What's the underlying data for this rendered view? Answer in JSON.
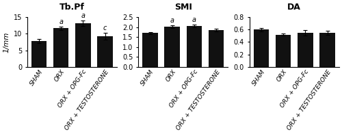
{
  "chart_data": [
    {
      "type": "bar",
      "title": "Tb.Pf",
      "ylabel": "1/mm",
      "categories": [
        "SHAM",
        "ORX",
        "ORX + OPG-Fc",
        "ORX + TESTOSTERONE"
      ],
      "values": [
        7.8,
        11.7,
        13.2,
        9.2
      ],
      "errors": [
        0.7,
        0.5,
        0.8,
        1.0
      ],
      "annotations": [
        null,
        "a",
        "a",
        "c"
      ],
      "color": "#111111",
      "ylim": [
        0,
        15
      ],
      "yticks": [
        0,
        5,
        10,
        15
      ],
      "grid": false
    },
    {
      "type": "bar",
      "title": "SMI",
      "categories": [
        "SHAM",
        "ORX",
        "ORX + OPG-Fc",
        "ORX + TESTOSTERONE"
      ],
      "values": [
        1.7,
        2.03,
        2.05,
        1.85
      ],
      "errors": [
        0.04,
        0.07,
        0.07,
        0.08
      ],
      "annotations": [
        null,
        "a",
        "a",
        null
      ],
      "color": "#111111",
      "ylim": [
        0.0,
        2.5
      ],
      "yticks": [
        {
          "value": 0.0,
          "label": "0.0"
        },
        0.5,
        {
          "value": 1.0,
          "label": "1.0"
        },
        1.5,
        {
          "value": 2.0,
          "label": "2.0"
        },
        2.5
      ],
      "grid": false
    },
    {
      "type": "bar",
      "title": "DA",
      "categories": [
        "SHAM",
        "ORX",
        "ORX + OPG-Fc",
        "ORX + TESTOSTERONE"
      ],
      "values": [
        0.6,
        0.52,
        0.55,
        0.55
      ],
      "errors": [
        0.03,
        0.02,
        0.04,
        0.03
      ],
      "color": "#111111",
      "ylim": [
        0.0,
        0.8
      ],
      "yticks": [
        {
          "value": 0.0,
          "label": "0.0"
        },
        0.2,
        0.4,
        0.6,
        0.8
      ],
      "grid": false
    }
  ]
}
